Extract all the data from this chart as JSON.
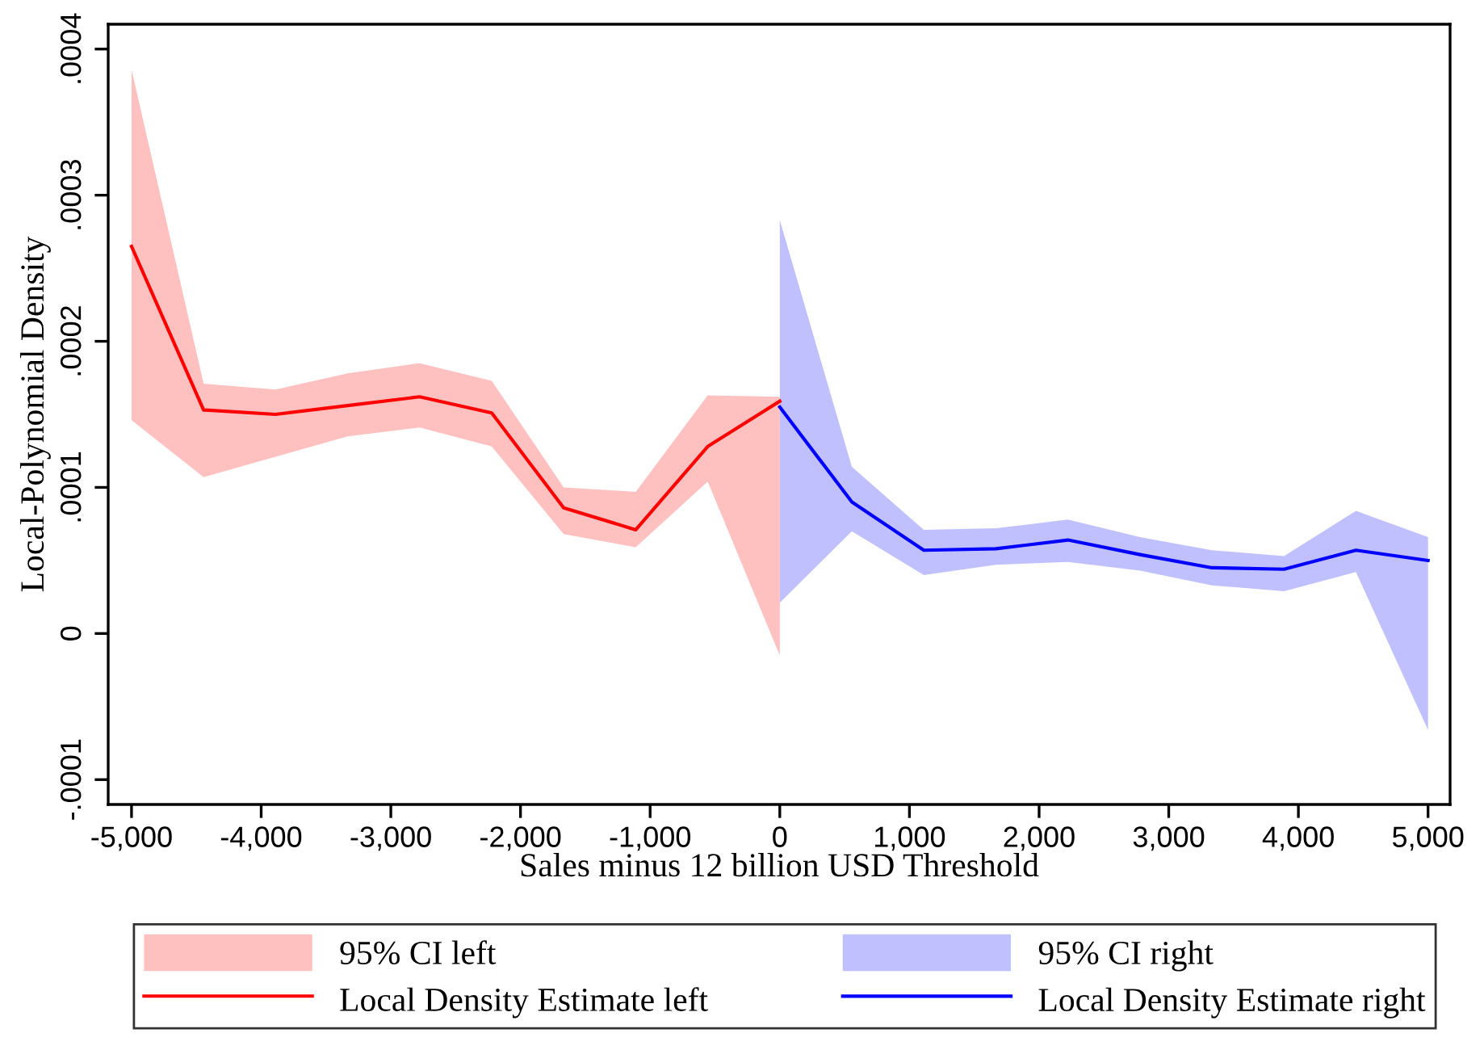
{
  "chart_data": {
    "type": "line",
    "xlabel": "Sales minus 12 billion USD Threshold",
    "ylabel": "Local-Polynomial Density",
    "series": [
      {
        "type": "area",
        "name": "95% CI left",
        "color": "#ffc0c0",
        "x": [
          -5000,
          -4444,
          -3889,
          -3333,
          -2778,
          -2222,
          -1667,
          -1111,
          -556,
          0
        ],
        "values": [
          null,
          null,
          null,
          null,
          null,
          null,
          null,
          null,
          null,
          null
        ],
        "lower": [
          0.000146,
          0.000107,
          0.000121,
          0.000135,
          0.000141,
          0.000128,
          6.8e-05,
          5.9e-05,
          0.000104,
          -1.5e-05
        ],
        "upper": [
          0.000386,
          0.000171,
          0.000167,
          0.000178,
          0.000185,
          0.000173,
          0.0001,
          9.7e-05,
          0.000163,
          0.000162
        ]
      },
      {
        "name": "Local Density Estimate left",
        "color": "#ff0000",
        "x": [
          -5000,
          -4444,
          -3889,
          -3333,
          -2778,
          -2222,
          -1667,
          -1111,
          -556,
          0
        ],
        "values": [
          0.000265,
          0.000153,
          0.00015,
          0.000156,
          0.000162,
          0.000151,
          8.6e-05,
          7.1e-05,
          0.000128,
          0.000159
        ]
      },
      {
        "type": "area",
        "name": "95% CI right",
        "color": "#c0c0ff",
        "x": [
          0,
          556,
          1111,
          1667,
          2222,
          2778,
          3333,
          3889,
          4444,
          5000
        ],
        "values": [
          null,
          null,
          null,
          null,
          null,
          null,
          null,
          null,
          null,
          null
        ],
        "lower": [
          2.1e-05,
          7e-05,
          4e-05,
          4.7e-05,
          4.9e-05,
          4.3e-05,
          3.3e-05,
          2.9e-05,
          4.2e-05,
          -6.6e-05
        ],
        "upper": [
          0.000283,
          0.000114,
          7.1e-05,
          7.2e-05,
          7.8e-05,
          6.6e-05,
          5.7e-05,
          5.3e-05,
          8.4e-05,
          6.6e-05
        ]
      },
      {
        "name": "Local Density Estimate right",
        "color": "#0000ff",
        "x": [
          0,
          556,
          1111,
          1667,
          2222,
          2778,
          3333,
          3889,
          4444,
          5000
        ],
        "values": [
          0.000155,
          9e-05,
          5.7e-05,
          5.8e-05,
          6.4e-05,
          5.4e-05,
          4.5e-05,
          4.4e-05,
          5.7e-05,
          5e-05
        ]
      }
    ],
    "xlim": [
      -5180,
      5170
    ],
    "xticks": [
      {
        "value": -5000,
        "label": "-5,000"
      },
      {
        "value": -4000,
        "label": "-4,000"
      },
      {
        "value": -3000,
        "label": "-3,000"
      },
      {
        "value": -2000,
        "label": "-2,000"
      },
      {
        "value": -1000,
        "label": "-1,000"
      },
      0,
      {
        "value": 1000,
        "label": "1,000"
      },
      {
        "value": 2000,
        "label": "2,000"
      },
      {
        "value": 3000,
        "label": "3,000"
      },
      {
        "value": 4000,
        "label": "4,000"
      },
      {
        "value": 5000,
        "label": "5,000"
      }
    ],
    "ylim": [
      -0.000117,
      0.000417
    ],
    "yticks": [
      {
        "value": -0.0001,
        "label": "-.0001"
      },
      0,
      {
        "value": 0.0001,
        "label": ".0001"
      },
      {
        "value": 0.0002,
        "label": ".0002"
      },
      {
        "value": 0.0003,
        "label": ".0003"
      },
      {
        "value": 0.0004,
        "label": ".0004"
      }
    ],
    "grid": false,
    "legend": "bottom"
  }
}
